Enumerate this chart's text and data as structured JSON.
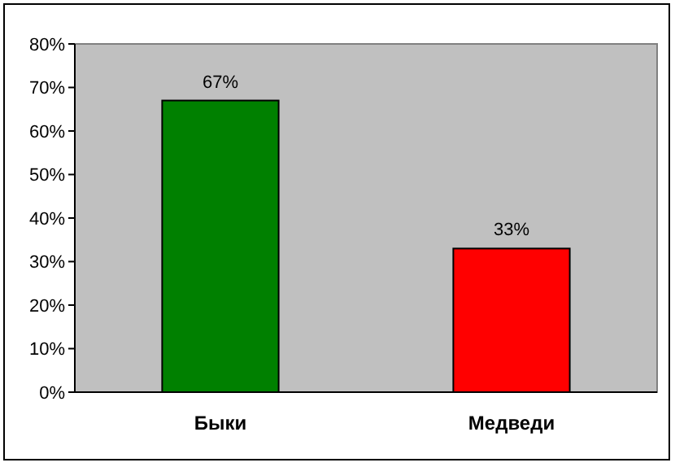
{
  "chart_data": {
    "type": "bar",
    "categories": [
      "Быки",
      "Медведи"
    ],
    "values": [
      67,
      33
    ],
    "colors": [
      "#008000",
      "#ff0000"
    ],
    "value_labels": [
      "67%",
      "33%"
    ],
    "ylim": [
      0,
      80
    ],
    "yticks": [
      {
        "value": 0,
        "label": "0%"
      },
      {
        "value": 10,
        "label": "10%"
      },
      {
        "value": 20,
        "label": "20%"
      },
      {
        "value": 30,
        "label": "30%"
      },
      {
        "value": 40,
        "label": "40%"
      },
      {
        "value": 50,
        "label": "50%"
      },
      {
        "value": 60,
        "label": "60%"
      },
      {
        "value": 70,
        "label": "70%"
      },
      {
        "value": 80,
        "label": "80%"
      }
    ]
  }
}
